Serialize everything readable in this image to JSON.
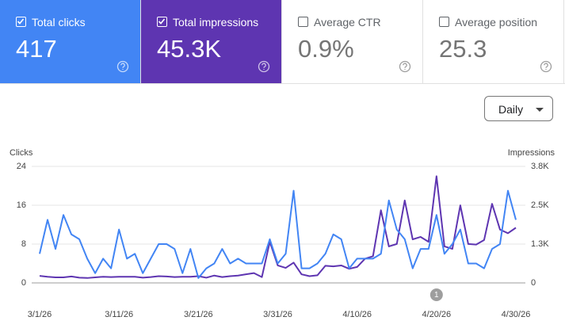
{
  "cards": [
    {
      "label": "Total clicks",
      "value": "417",
      "checked": true,
      "color": "#4285f4"
    },
    {
      "label": "Total impressions",
      "value": "45.3K",
      "checked": true,
      "color": "#5e35b1"
    },
    {
      "label": "Average CTR",
      "value": "0.9%",
      "checked": false,
      "color": "#ffffff"
    },
    {
      "label": "Average position",
      "value": "25.3",
      "checked": false,
      "color": "#ffffff"
    }
  ],
  "dropdown": "Daily",
  "chart_data": {
    "type": "line",
    "ylabel": "Clicks",
    "y2label": "Impressions",
    "categories": [
      "3/1/26",
      null,
      null,
      null,
      null,
      null,
      null,
      null,
      null,
      null,
      "3/11/26",
      null,
      null,
      null,
      null,
      null,
      null,
      null,
      null,
      null,
      "3/21/26",
      null,
      null,
      null,
      null,
      null,
      null,
      null,
      null,
      null,
      "3/31/26",
      null,
      null,
      null,
      null,
      null,
      null,
      null,
      null,
      null,
      "4/10/26",
      null,
      null,
      null,
      null,
      null,
      null,
      null,
      null,
      null,
      "4/20/26",
      null,
      null,
      null,
      null,
      null,
      null,
      null,
      null,
      null,
      "4/30/26"
    ],
    "series": [
      {
        "name": "Clicks",
        "color": "#4285f4",
        "axis": "y",
        "values": [
          6,
          13,
          7,
          14,
          10,
          9,
          5,
          2,
          5,
          3,
          11,
          5,
          6,
          2,
          5,
          8,
          8,
          7,
          2,
          7,
          1,
          3,
          4,
          7,
          4,
          5,
          4,
          4,
          4,
          9,
          4,
          6,
          19,
          3,
          3,
          4,
          6,
          10,
          9,
          3,
          5,
          5,
          5,
          6,
          17,
          11,
          9,
          3,
          7,
          7,
          14,
          6,
          8,
          11,
          4,
          4,
          3,
          7,
          8,
          19,
          13
        ]
      },
      {
        "name": "Impressions",
        "color": "#5e35b1",
        "axis": "y2",
        "values": [
          230,
          200,
          180,
          180,
          210,
          170,
          160,
          180,
          200,
          190,
          200,
          200,
          200,
          170,
          190,
          220,
          210,
          190,
          200,
          200,
          220,
          170,
          240,
          190,
          220,
          240,
          280,
          320,
          190,
          1340,
          570,
          490,
          660,
          280,
          220,
          250,
          560,
          540,
          570,
          460,
          520,
          790,
          870,
          2370,
          1190,
          1270,
          2690,
          1420,
          1500,
          1340,
          3480,
          1190,
          1110,
          2530,
          1270,
          1250,
          1400,
          2580,
          1740,
          1620,
          1800
        ]
      }
    ],
    "ylim": [
      0,
      24
    ],
    "yticks": [
      0,
      8,
      16,
      24
    ],
    "y2lim": [
      0,
      3800
    ],
    "y2ticks": [
      0,
      {
        "value": 1267,
        "label": "1.3K"
      },
      {
        "value": 2533,
        "label": "2.5K"
      },
      {
        "value": 3800,
        "label": "3.8K"
      }
    ],
    "grid": true,
    "annotations": [
      {
        "text": "1",
        "x": "4/20/26"
      }
    ]
  }
}
